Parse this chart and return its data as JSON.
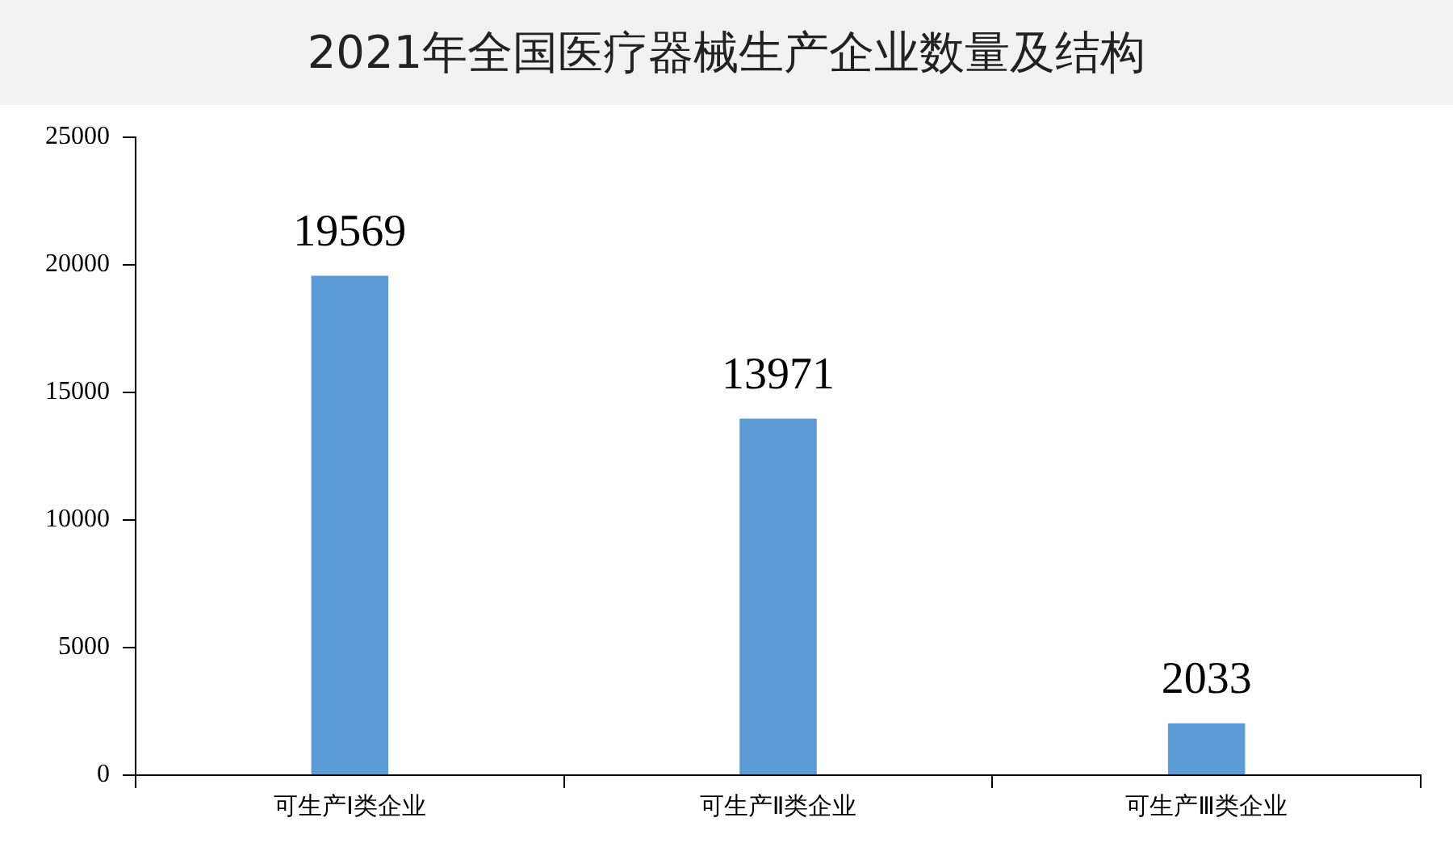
{
  "chart_data": {
    "type": "bar",
    "title": "2021年全国医疗器械生产企业数量及结构",
    "categories": [
      "可生产Ⅰ类企业",
      "可生产Ⅱ类企业",
      "可生产Ⅲ类企业"
    ],
    "values": [
      19569,
      13971,
      2033
    ],
    "color": "#5b9bd5",
    "ylim": [
      0,
      25000
    ],
    "yticks": [
      0,
      5000,
      10000,
      15000,
      20000,
      25000
    ],
    "grid": false,
    "data_labels": true
  }
}
